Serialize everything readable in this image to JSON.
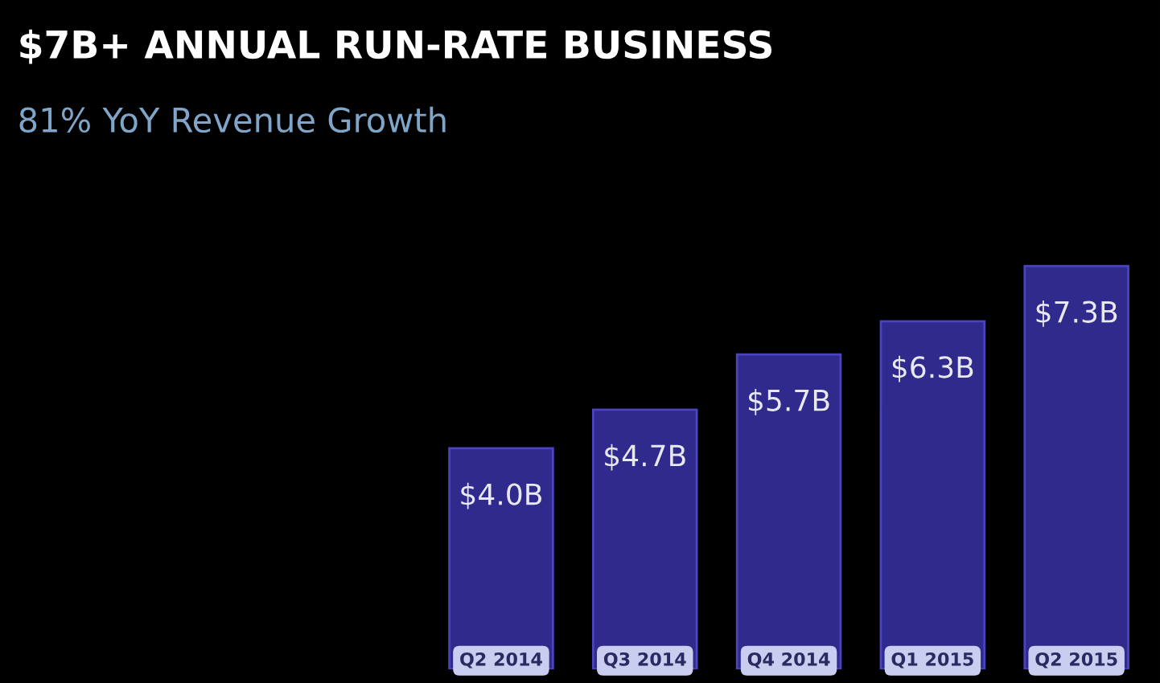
{
  "chart_data": {
    "type": "bar",
    "title": "$7B+ ANNUAL RUN-RATE BUSINESS",
    "subtitle": "81% YoY Revenue Growth",
    "categories": [
      "Q2 2014",
      "Q3 2014",
      "Q4 2014",
      "Q1 2015",
      "Q2 2015"
    ],
    "values": [
      4.0,
      4.7,
      5.7,
      6.3,
      7.3
    ],
    "value_labels": [
      "$4.0B",
      "$4.7B",
      "$5.7B",
      "$6.3B",
      "$7.3B"
    ],
    "color": "#2f2a8c"
  }
}
